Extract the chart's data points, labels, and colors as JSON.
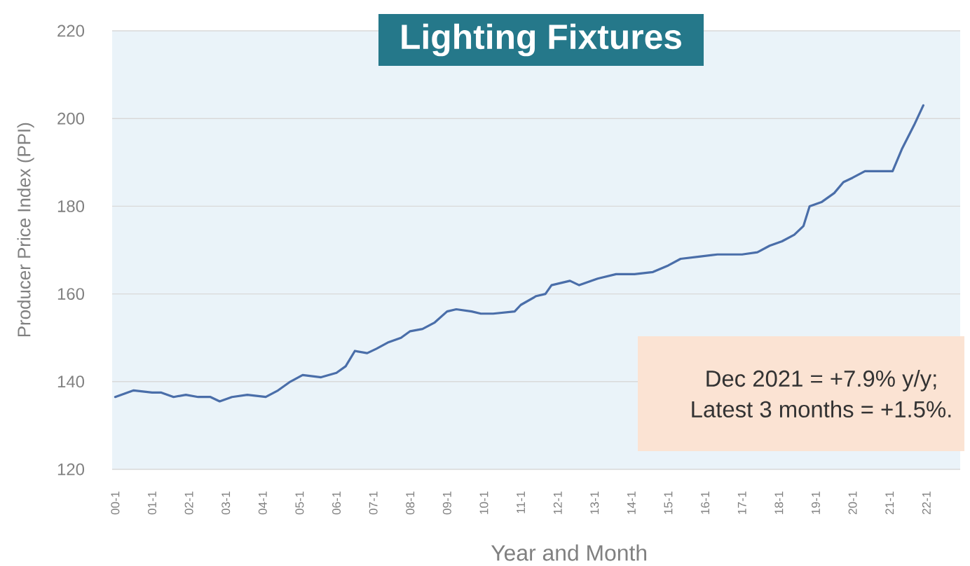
{
  "chart_data": {
    "type": "line",
    "title": "Lighting Fixtures",
    "xlabel": "Year and Month",
    "ylabel": "Producer Price Index (PPI)",
    "annotations": [
      "Dec 2021 = +7.9% y/y;",
      "Latest 3 months = +1.5%."
    ],
    "x": [
      "2000-01",
      "2000-07",
      "2001-01",
      "2001-04",
      "2001-08",
      "2001-12",
      "2002-04",
      "2002-08",
      "2002-11",
      "2003-03",
      "2003-08",
      "2004-02",
      "2004-06",
      "2004-10",
      "2005-02",
      "2005-08",
      "2006-01",
      "2006-04",
      "2006-07",
      "2006-11",
      "2007-02",
      "2007-06",
      "2007-10",
      "2008-01",
      "2008-05",
      "2008-09",
      "2009-01",
      "2009-04",
      "2009-09",
      "2009-12",
      "2010-04",
      "2010-11",
      "2011-01",
      "2011-06",
      "2011-09",
      "2011-11",
      "2012-05",
      "2012-08",
      "2013-02",
      "2013-08",
      "2014-02",
      "2014-08",
      "2015-01",
      "2015-05",
      "2015-11",
      "2016-05",
      "2017-01",
      "2017-06",
      "2017-10",
      "2018-02",
      "2018-06",
      "2018-09",
      "2018-11",
      "2019-03",
      "2019-07",
      "2019-10",
      "2020-01",
      "2020-05",
      "2020-11",
      "2021-02",
      "2021-05",
      "2021-09",
      "2021-12"
    ],
    "series": [
      {
        "color": "#4a6ea9",
        "values": [
          136.5,
          138,
          137.5,
          137.5,
          136.5,
          137,
          136.5,
          136.5,
          135.5,
          136.5,
          137,
          136.5,
          138,
          140,
          141.5,
          141,
          142,
          143.5,
          147,
          146.5,
          147.5,
          149,
          150,
          151.5,
          152,
          153.5,
          156,
          156.5,
          156,
          155.5,
          155.5,
          156,
          157.5,
          159.5,
          160,
          162,
          163,
          162,
          163.5,
          164.5,
          164.5,
          165,
          166.5,
          168,
          168.5,
          169,
          169,
          169.5,
          171,
          172,
          173.5,
          175.5,
          180,
          181,
          183,
          185.5,
          186.5,
          188,
          188,
          188,
          193,
          198.5,
          203
        ]
      }
    ],
    "xlim": [
      "1999-12",
      "2022-12"
    ],
    "xticks": [
      {
        "value": "2000-01",
        "label": "00-1"
      },
      {
        "value": "2001-01",
        "label": "01-1"
      },
      {
        "value": "2002-01",
        "label": "02-1"
      },
      {
        "value": "2003-01",
        "label": "03-1"
      },
      {
        "value": "2004-01",
        "label": "04-1"
      },
      {
        "value": "2005-01",
        "label": "05-1"
      },
      {
        "value": "2006-01",
        "label": "06-1"
      },
      {
        "value": "2007-01",
        "label": "07-1"
      },
      {
        "value": "2008-01",
        "label": "08-1"
      },
      {
        "value": "2009-01",
        "label": "09-1"
      },
      {
        "value": "2010-01",
        "label": "10-1"
      },
      {
        "value": "2011-01",
        "label": "11-1"
      },
      {
        "value": "2012-01",
        "label": "12-1"
      },
      {
        "value": "2013-01",
        "label": "13-1"
      },
      {
        "value": "2014-01",
        "label": "14-1"
      },
      {
        "value": "2015-01",
        "label": "15-1"
      },
      {
        "value": "2016-01",
        "label": "16-1"
      },
      {
        "value": "2017-01",
        "label": "17-1"
      },
      {
        "value": "2018-01",
        "label": "18-1"
      },
      {
        "value": "2019-01",
        "label": "19-1"
      },
      {
        "value": "2020-01",
        "label": "20-1"
      },
      {
        "value": "2021-01",
        "label": "21-1"
      },
      {
        "value": "2022-01",
        "label": "22-1"
      }
    ],
    "ylim": [
      120,
      220
    ],
    "yticks": [
      120,
      140,
      160,
      180,
      200,
      220
    ],
    "grid": "y",
    "line_style": "solid"
  }
}
